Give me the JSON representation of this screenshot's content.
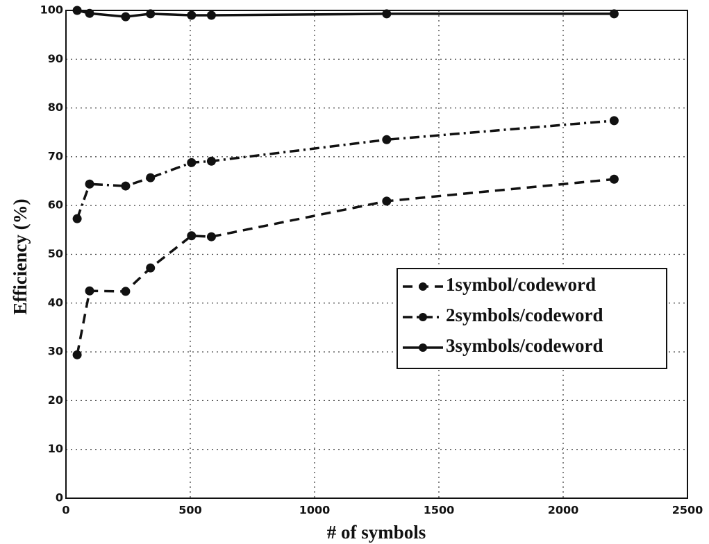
{
  "chart_data": {
    "type": "line",
    "x_label": "# of symbols",
    "y_label": "Efficiency (%)",
    "xlim": [
      0,
      2500
    ],
    "xticks": [
      0,
      500,
      1000,
      1500,
      2000,
      2500
    ],
    "ylim": [
      0,
      100
    ],
    "yticks": [
      0,
      10,
      20,
      30,
      40,
      50,
      60,
      70,
      80,
      90,
      100
    ],
    "grid": true,
    "legend": "right",
    "series": [
      {
        "name": "1symbol/codeword",
        "color": "#111111",
        "style": "dashed",
        "x": [
          45,
          95,
          240,
          340,
          505,
          585,
          1290,
          2205
        ],
        "values": [
          29.4,
          42.5,
          42.4,
          47.2,
          53.8,
          53.6,
          60.9,
          65.4
        ]
      },
      {
        "name": "2symbols/codeword",
        "color": "#111111",
        "style": "dashdot",
        "x": [
          45,
          95,
          240,
          340,
          505,
          585,
          1290,
          2205
        ],
        "values": [
          57.3,
          64.4,
          64.0,
          65.7,
          68.8,
          69.1,
          73.5,
          77.4
        ]
      },
      {
        "name": "3symbols/codeword",
        "color": "#111111",
        "style": "solid",
        "x": [
          45,
          95,
          240,
          340,
          505,
          585,
          1290,
          2205
        ],
        "values": [
          100,
          99.4,
          98.7,
          99.3,
          99.0,
          99.0,
          99.3,
          99.3
        ]
      }
    ]
  }
}
